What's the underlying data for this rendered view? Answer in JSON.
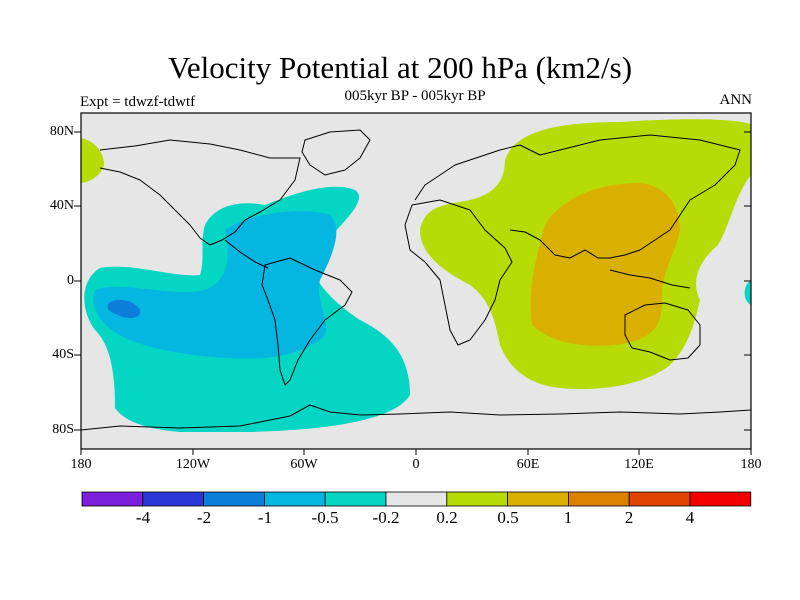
{
  "header": {
    "title": "Velocity Potential at 200 hPa (km2/s)",
    "subtitle": "005kyr BP - 005kyr BP",
    "left_label": "Expt = tdwzf-tdwtf",
    "right_label": "ANN"
  },
  "axes": {
    "y_ticks": [
      "80N",
      "40N",
      "0",
      "40S",
      "80S"
    ],
    "x_ticks": [
      "180",
      "120W",
      "60W",
      "0",
      "60E",
      "120E",
      "180"
    ]
  },
  "colorbar": {
    "colors": [
      "#7a1fdc",
      "#2a36d6",
      "#0a7ed8",
      "#05b6e0",
      "#05d6c4",
      "#e6e6e6",
      "#b6db06",
      "#d9af00",
      "#dc8000",
      "#e04400",
      "#f20000"
    ],
    "labels": [
      "-4",
      "-2",
      "-1",
      "-0.5",
      "-0.2",
      "0.2",
      "0.5",
      "1",
      "2",
      "4"
    ]
  },
  "map_colors": {
    "background": "#e6e6e6",
    "neg_weak": "#05d6c4",
    "neg_mid": "#05b6e0",
    "neg_strong": "#0a7ed8",
    "pos_weak": "#b6db06",
    "pos_mid": "#d9af00",
    "coastline": "#000000"
  }
}
